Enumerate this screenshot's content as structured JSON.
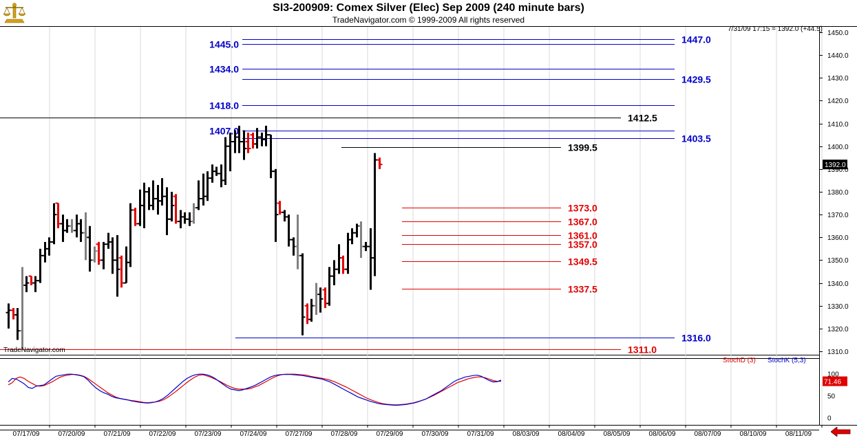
{
  "header": {
    "title": "SI3-200909:  Comex Silver (Elec) Sep 2009  (240 minute bars)",
    "copyright": "TradeNavigator.com © 1999-2009 All rights reserved",
    "quote": "7/31/09 17:15 = 1392.0 (+44.5)",
    "watermark": "TradeNavigator.com",
    "logo_icon": "scales-icon"
  },
  "colors": {
    "blue_levels": "#0000cc",
    "red_levels": "#e00000",
    "black_levels": "#000000",
    "up_bar": "#000000",
    "down_bar": "#e00000",
    "neutral_bar": "#808080",
    "stoch_d": "#e00000",
    "stoch_k": "#0000cc"
  },
  "chart_data": [
    {
      "type": "ohlc",
      "ylim": [
        1302,
        1453
      ],
      "y_ticks": [
        "1310.0",
        "1320.0",
        "1330.0",
        "1340.0",
        "1350.0",
        "1360.0",
        "1370.0",
        "1380.0",
        "1390.0",
        "1400.0",
        "1410.0",
        "1420.0",
        "1430.0",
        "1440.0",
        "1450.0"
      ],
      "last_price_label": "1392.0",
      "x_tick_labels": [
        "07/17/09",
        "07/20/09",
        "07/21/09",
        "07/22/09",
        "07/23/09",
        "07/24/09",
        "07/27/09",
        "07/28/09",
        "07/29/09",
        "07/30/09",
        "07/31/09",
        "08/03/09",
        "08/04/09",
        "08/05/09",
        "08/06/09",
        "08/07/09",
        "08/10/09",
        "08/11/09"
      ],
      "levels": [
        {
          "label": "1445.0",
          "price": 1445.0,
          "color": "blue",
          "label_side": "left"
        },
        {
          "label": "1447.0",
          "price": 1447.0,
          "color": "blue",
          "label_side": "right"
        },
        {
          "label": "1434.0",
          "price": 1434.0,
          "color": "blue",
          "label_side": "left"
        },
        {
          "label": "1429.5",
          "price": 1429.5,
          "color": "blue",
          "label_side": "right"
        },
        {
          "label": "1418.0",
          "price": 1418.0,
          "color": "blue",
          "label_side": "left"
        },
        {
          "label": "1412.5",
          "price": 1412.5,
          "color": "black",
          "label_side": "right"
        },
        {
          "label": "1407.0",
          "price": 1407.0,
          "color": "blue",
          "label_side": "left"
        },
        {
          "label": "1403.5",
          "price": 1403.5,
          "color": "blue",
          "label_side": "right"
        },
        {
          "label": "1399.5",
          "price": 1399.5,
          "color": "black",
          "label_side": "right"
        },
        {
          "label": "1373.0",
          "price": 1373.0,
          "color": "red",
          "label_side": "right"
        },
        {
          "label": "1367.0",
          "price": 1367.0,
          "color": "red",
          "label_side": "right"
        },
        {
          "label": "1361.0",
          "price": 1361.0,
          "color": "red",
          "label_side": "right"
        },
        {
          "label": "1357.0",
          "price": 1357.0,
          "color": "red",
          "label_side": "right"
        },
        {
          "label": "1349.5",
          "price": 1349.5,
          "color": "red",
          "label_side": "right"
        },
        {
          "label": "1337.5",
          "price": 1337.5,
          "color": "red",
          "label_side": "right"
        },
        {
          "label": "1316.0",
          "price": 1316.0,
          "color": "blue",
          "label_side": "right"
        },
        {
          "label": "1311.0",
          "price": 1311.0,
          "color": "red",
          "label_side": "right"
        }
      ],
      "bars": [
        {
          "o": 1327,
          "h": 1331,
          "l": 1320,
          "c": 1328,
          "t": "u"
        },
        {
          "o": 1328,
          "h": 1329,
          "l": 1324,
          "c": 1326,
          "t": "d"
        },
        {
          "o": 1326,
          "h": 1329,
          "l": 1315,
          "c": 1319,
          "t": "u"
        },
        {
          "o": 1319,
          "h": 1347,
          "l": 1311,
          "c": 1339,
          "t": "n"
        },
        {
          "o": 1339,
          "h": 1343,
          "l": 1336,
          "c": 1340,
          "t": "u"
        },
        {
          "o": 1343,
          "h": 1343,
          "l": 1339,
          "c": 1340,
          "t": "d"
        },
        {
          "o": 1340,
          "h": 1343,
          "l": 1336,
          "c": 1341,
          "t": "u"
        },
        {
          "o": 1341,
          "h": 1355,
          "l": 1340,
          "c": 1352,
          "t": "u"
        },
        {
          "o": 1352,
          "h": 1358,
          "l": 1349,
          "c": 1355,
          "t": "u"
        },
        {
          "o": 1355,
          "h": 1360,
          "l": 1352,
          "c": 1358,
          "t": "u"
        },
        {
          "o": 1358,
          "h": 1375,
          "l": 1357,
          "c": 1370,
          "t": "u"
        },
        {
          "o": 1375,
          "h": 1375,
          "l": 1364,
          "c": 1366,
          "t": "d"
        },
        {
          "o": 1366,
          "h": 1370,
          "l": 1358,
          "c": 1363,
          "t": "u"
        },
        {
          "o": 1363,
          "h": 1368,
          "l": 1362,
          "c": 1365,
          "t": "u"
        },
        {
          "o": 1365,
          "h": 1368,
          "l": 1362,
          "c": 1363,
          "t": "n"
        },
        {
          "o": 1363,
          "h": 1370,
          "l": 1360,
          "c": 1366,
          "t": "u"
        },
        {
          "o": 1366,
          "h": 1368,
          "l": 1358,
          "c": 1362,
          "t": "u"
        },
        {
          "o": 1362,
          "h": 1371,
          "l": 1350,
          "c": 1360,
          "t": "n"
        },
        {
          "o": 1360,
          "h": 1365,
          "l": 1345,
          "c": 1350,
          "t": "u"
        },
        {
          "o": 1350,
          "h": 1356,
          "l": 1349,
          "c": 1354,
          "t": "n"
        },
        {
          "o": 1357,
          "h": 1358,
          "l": 1348,
          "c": 1350,
          "t": "d"
        },
        {
          "o": 1350,
          "h": 1358,
          "l": 1346,
          "c": 1357,
          "t": "u"
        },
        {
          "o": 1357,
          "h": 1362,
          "l": 1355,
          "c": 1358,
          "t": "u"
        },
        {
          "o": 1358,
          "h": 1360,
          "l": 1344,
          "c": 1350,
          "t": "u"
        },
        {
          "o": 1350,
          "h": 1361,
          "l": 1334,
          "c": 1346,
          "t": "u"
        },
        {
          "o": 1351,
          "h": 1352,
          "l": 1338,
          "c": 1340,
          "t": "d"
        },
        {
          "o": 1340,
          "h": 1356,
          "l": 1340,
          "c": 1349,
          "t": "u"
        },
        {
          "o": 1349,
          "h": 1375,
          "l": 1347,
          "c": 1372,
          "t": "u"
        },
        {
          "o": 1372,
          "h": 1373,
          "l": 1365,
          "c": 1366,
          "t": "d"
        },
        {
          "o": 1366,
          "h": 1381,
          "l": 1365,
          "c": 1374,
          "t": "u"
        },
        {
          "o": 1374,
          "h": 1384,
          "l": 1364,
          "c": 1380,
          "t": "u"
        },
        {
          "o": 1380,
          "h": 1382,
          "l": 1372,
          "c": 1374,
          "t": "u"
        },
        {
          "o": 1374,
          "h": 1385,
          "l": 1372,
          "c": 1377,
          "t": "u"
        },
        {
          "o": 1377,
          "h": 1383,
          "l": 1370,
          "c": 1376,
          "t": "u"
        },
        {
          "o": 1376,
          "h": 1386,
          "l": 1374,
          "c": 1378,
          "t": "u"
        },
        {
          "o": 1378,
          "h": 1382,
          "l": 1361,
          "c": 1368,
          "t": "u"
        },
        {
          "o": 1368,
          "h": 1380,
          "l": 1367,
          "c": 1374,
          "t": "u"
        },
        {
          "o": 1378,
          "h": 1379,
          "l": 1366,
          "c": 1367,
          "t": "d"
        },
        {
          "o": 1367,
          "h": 1372,
          "l": 1364,
          "c": 1369,
          "t": "u"
        },
        {
          "o": 1369,
          "h": 1371,
          "l": 1366,
          "c": 1368,
          "t": "u"
        },
        {
          "o": 1368,
          "h": 1371,
          "l": 1365,
          "c": 1367,
          "t": "u"
        },
        {
          "o": 1367,
          "h": 1375,
          "l": 1366,
          "c": 1373,
          "t": "n"
        },
        {
          "o": 1373,
          "h": 1385,
          "l": 1372,
          "c": 1377,
          "t": "u"
        },
        {
          "o": 1377,
          "h": 1388,
          "l": 1374,
          "c": 1378,
          "t": "u"
        },
        {
          "o": 1378,
          "h": 1389,
          "l": 1376,
          "c": 1386,
          "t": "u"
        },
        {
          "o": 1386,
          "h": 1392,
          "l": 1384,
          "c": 1389,
          "t": "u"
        },
        {
          "o": 1389,
          "h": 1391,
          "l": 1387,
          "c": 1388,
          "t": "u"
        },
        {
          "o": 1388,
          "h": 1392,
          "l": 1382,
          "c": 1385,
          "t": "u"
        },
        {
          "o": 1385,
          "h": 1404,
          "l": 1383,
          "c": 1400,
          "t": "u"
        },
        {
          "o": 1400,
          "h": 1406,
          "l": 1389,
          "c": 1402,
          "t": "u"
        },
        {
          "o": 1402,
          "h": 1407,
          "l": 1397,
          "c": 1404,
          "t": "u"
        },
        {
          "o": 1404,
          "h": 1409,
          "l": 1397,
          "c": 1402,
          "t": "u"
        },
        {
          "o": 1402,
          "h": 1407,
          "l": 1394,
          "c": 1399,
          "t": "u"
        },
        {
          "o": 1402,
          "h": 1406,
          "l": 1397,
          "c": 1399,
          "t": "d"
        },
        {
          "o": 1405,
          "h": 1406,
          "l": 1399,
          "c": 1401,
          "t": "d"
        },
        {
          "o": 1401,
          "h": 1408,
          "l": 1399,
          "c": 1404,
          "t": "u"
        },
        {
          "o": 1404,
          "h": 1406,
          "l": 1400,
          "c": 1403,
          "t": "u"
        },
        {
          "o": 1403,
          "h": 1409,
          "l": 1400,
          "c": 1405,
          "t": "u"
        },
        {
          "o": 1405,
          "h": 1405,
          "l": 1386,
          "c": 1389,
          "t": "u"
        },
        {
          "o": 1389,
          "h": 1390,
          "l": 1358,
          "c": 1370,
          "t": "u"
        },
        {
          "o": 1375,
          "h": 1376,
          "l": 1370,
          "c": 1371,
          "t": "d"
        },
        {
          "o": 1371,
          "h": 1372,
          "l": 1367,
          "c": 1369,
          "t": "u"
        },
        {
          "o": 1369,
          "h": 1370,
          "l": 1356,
          "c": 1359,
          "t": "u"
        },
        {
          "o": 1359,
          "h": 1360,
          "l": 1352,
          "c": 1356,
          "t": "u"
        },
        {
          "o": 1356,
          "h": 1370,
          "l": 1346,
          "c": 1352,
          "t": "n"
        },
        {
          "o": 1352,
          "h": 1353,
          "l": 1317,
          "c": 1325,
          "t": "u"
        },
        {
          "o": 1330,
          "h": 1331,
          "l": 1322,
          "c": 1324,
          "t": "d"
        },
        {
          "o": 1324,
          "h": 1333,
          "l": 1323,
          "c": 1330,
          "t": "u"
        },
        {
          "o": 1330,
          "h": 1340,
          "l": 1326,
          "c": 1335,
          "t": "n"
        },
        {
          "o": 1335,
          "h": 1338,
          "l": 1327,
          "c": 1333,
          "t": "u"
        },
        {
          "o": 1337,
          "h": 1338,
          "l": 1329,
          "c": 1331,
          "t": "d"
        },
        {
          "o": 1331,
          "h": 1347,
          "l": 1330,
          "c": 1343,
          "t": "u"
        },
        {
          "o": 1343,
          "h": 1350,
          "l": 1339,
          "c": 1346,
          "t": "u"
        },
        {
          "o": 1346,
          "h": 1357,
          "l": 1344,
          "c": 1351,
          "t": "u"
        },
        {
          "o": 1351,
          "h": 1352,
          "l": 1344,
          "c": 1346,
          "t": "d"
        },
        {
          "o": 1346,
          "h": 1362,
          "l": 1344,
          "c": 1359,
          "t": "u"
        },
        {
          "o": 1359,
          "h": 1364,
          "l": 1357,
          "c": 1362,
          "t": "u"
        },
        {
          "o": 1362,
          "h": 1366,
          "l": 1360,
          "c": 1365,
          "t": "u"
        },
        {
          "o": 1365,
          "h": 1367,
          "l": 1351,
          "c": 1356,
          "t": "n"
        },
        {
          "o": 1356,
          "h": 1358,
          "l": 1354,
          "c": 1356,
          "t": "u"
        },
        {
          "o": 1356,
          "h": 1364,
          "l": 1337,
          "c": 1351,
          "t": "u"
        },
        {
          "o": 1351,
          "h": 1397,
          "l": 1343,
          "c": 1394,
          "t": "u"
        },
        {
          "o": 1394,
          "h": 1395,
          "l": 1390,
          "c": 1392,
          "t": "d"
        }
      ]
    },
    {
      "type": "line",
      "title": "",
      "y_ticks": [
        "100",
        "50",
        "0"
      ],
      "ylim": [
        -2,
        120
      ],
      "current_value_label": "71.46",
      "series": [
        {
          "name": "StochD (3)",
          "color": "red",
          "values": [
            62,
            68,
            80,
            84,
            80,
            72,
            66,
            60,
            58,
            60,
            65,
            70,
            77,
            83,
            87,
            89,
            91,
            91,
            89,
            86,
            80,
            72,
            64,
            56,
            48,
            40,
            34,
            28,
            24,
            22,
            20,
            18,
            17,
            15,
            13,
            12,
            13,
            14,
            16,
            20,
            26,
            34,
            42,
            51,
            60,
            69,
            77,
            84,
            89,
            90,
            87,
            83,
            78,
            73,
            67,
            61,
            56,
            52,
            50,
            50,
            50,
            52,
            56,
            60,
            66,
            72,
            78,
            84,
            88,
            91,
            92,
            92,
            92,
            91,
            90,
            89,
            86,
            84,
            82,
            80,
            78,
            75,
            71,
            66,
            61,
            56,
            50,
            44,
            38,
            32,
            26,
            21,
            17,
            13,
            10,
            8,
            7,
            6,
            6,
            7,
            8,
            10,
            12,
            15,
            18,
            22,
            27,
            32,
            38,
            44,
            50,
            56,
            62,
            68,
            72,
            76,
            80,
            82,
            84,
            84,
            82,
            78,
            74,
            72,
            72
          ]
        },
        {
          "name": "StochK (5,3)",
          "color": "blue",
          "values": [
            70,
            80,
            78,
            72,
            65,
            55,
            52,
            58,
            60,
            62,
            70,
            78,
            86,
            88,
            90,
            92,
            92,
            90,
            88,
            85,
            76,
            64,
            54,
            46,
            40,
            36,
            30,
            26,
            24,
            22,
            20,
            17,
            15,
            13,
            12,
            11,
            12,
            14,
            18,
            24,
            32,
            42,
            52,
            62,
            72,
            80,
            86,
            90,
            92,
            92,
            90,
            86,
            80,
            72,
            64,
            56,
            50,
            48,
            46,
            48,
            52,
            56,
            60,
            66,
            72,
            78,
            84,
            88,
            90,
            91,
            91,
            91,
            90,
            89,
            88,
            86,
            84,
            82,
            80,
            78,
            74,
            70,
            64,
            58,
            52,
            46,
            40,
            34,
            28,
            24,
            20,
            16,
            13,
            10,
            8,
            7,
            6,
            5,
            5,
            6,
            7,
            9,
            11,
            14,
            18,
            22,
            28,
            34,
            40,
            46,
            54,
            62,
            70,
            76,
            80,
            84,
            86,
            88,
            89,
            86,
            80,
            74,
            70,
            71,
            75
          ]
        }
      ]
    }
  ]
}
